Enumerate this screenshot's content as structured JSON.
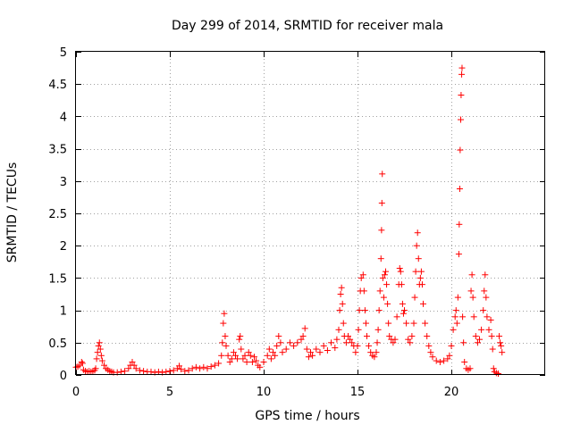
{
  "chart_data": {
    "type": "scatter",
    "title": "Day 299 of 2014, SRMTID for receiver mala",
    "xlabel": "GPS time / hours",
    "ylabel": "SRMTID / TECUs",
    "xlim": [
      0,
      25
    ],
    "ylim": [
      0,
      5
    ],
    "x_ticks": [
      0,
      5,
      10,
      15,
      20
    ],
    "y_ticks": [
      0,
      0.5,
      1,
      1.5,
      2,
      2.5,
      3,
      3.5,
      4,
      4.5,
      5
    ],
    "x_tick_labels": [
      "0",
      "5",
      "10",
      "15",
      "20"
    ],
    "y_tick_labels": [
      "0",
      "0.5",
      "1",
      "1.5",
      "2",
      "2.5",
      "3",
      "3.5",
      "4",
      "4.5",
      "5"
    ],
    "grid": true,
    "marker": "+",
    "color": "#ff0000",
    "series": [
      {
        "name": "SRMTID",
        "points": [
          [
            0.0,
            0.12
          ],
          [
            0.1,
            0.13
          ],
          [
            0.2,
            0.15
          ],
          [
            0.3,
            0.2
          ],
          [
            0.35,
            0.18
          ],
          [
            0.4,
            0.08
          ],
          [
            0.5,
            0.06
          ],
          [
            0.6,
            0.05
          ],
          [
            0.7,
            0.06
          ],
          [
            0.8,
            0.05
          ],
          [
            0.9,
            0.06
          ],
          [
            1.0,
            0.07
          ],
          [
            1.05,
            0.1
          ],
          [
            1.1,
            0.25
          ],
          [
            1.15,
            0.35
          ],
          [
            1.2,
            0.45
          ],
          [
            1.25,
            0.5
          ],
          [
            1.3,
            0.4
          ],
          [
            1.35,
            0.3
          ],
          [
            1.4,
            0.22
          ],
          [
            1.5,
            0.15
          ],
          [
            1.6,
            0.1
          ],
          [
            1.7,
            0.08
          ],
          [
            1.8,
            0.06
          ],
          [
            1.9,
            0.05
          ],
          [
            2.0,
            0.04
          ],
          [
            2.2,
            0.04
          ],
          [
            2.4,
            0.05
          ],
          [
            2.6,
            0.06
          ],
          [
            2.8,
            0.1
          ],
          [
            2.9,
            0.15
          ],
          [
            3.0,
            0.2
          ],
          [
            3.1,
            0.15
          ],
          [
            3.2,
            0.1
          ],
          [
            3.4,
            0.07
          ],
          [
            3.6,
            0.06
          ],
          [
            3.8,
            0.05
          ],
          [
            4.0,
            0.05
          ],
          [
            4.2,
            0.04
          ],
          [
            4.4,
            0.05
          ],
          [
            4.6,
            0.04
          ],
          [
            4.8,
            0.05
          ],
          [
            5.0,
            0.06
          ],
          [
            5.2,
            0.07
          ],
          [
            5.4,
            0.1
          ],
          [
            5.5,
            0.14
          ],
          [
            5.6,
            0.09
          ],
          [
            5.8,
            0.06
          ],
          [
            6.0,
            0.07
          ],
          [
            6.2,
            0.1
          ],
          [
            6.4,
            0.12
          ],
          [
            6.6,
            0.1
          ],
          [
            6.8,
            0.12
          ],
          [
            7.0,
            0.1
          ],
          [
            7.2,
            0.13
          ],
          [
            7.4,
            0.15
          ],
          [
            7.6,
            0.18
          ],
          [
            7.75,
            0.3
          ],
          [
            7.8,
            0.5
          ],
          [
            7.85,
            0.8
          ],
          [
            7.9,
            0.95
          ],
          [
            7.95,
            0.6
          ],
          [
            8.0,
            0.45
          ],
          [
            8.1,
            0.3
          ],
          [
            8.2,
            0.2
          ],
          [
            8.3,
            0.25
          ],
          [
            8.4,
            0.35
          ],
          [
            8.5,
            0.3
          ],
          [
            8.6,
            0.25
          ],
          [
            8.7,
            0.55
          ],
          [
            8.75,
            0.6
          ],
          [
            8.8,
            0.4
          ],
          [
            8.9,
            0.25
          ],
          [
            9.0,
            0.3
          ],
          [
            9.1,
            0.2
          ],
          [
            9.2,
            0.35
          ],
          [
            9.3,
            0.3
          ],
          [
            9.4,
            0.2
          ],
          [
            9.5,
            0.28
          ],
          [
            9.6,
            0.22
          ],
          [
            9.7,
            0.15
          ],
          [
            9.8,
            0.12
          ],
          [
            10.0,
            0.2
          ],
          [
            10.2,
            0.3
          ],
          [
            10.3,
            0.4
          ],
          [
            10.4,
            0.25
          ],
          [
            10.5,
            0.35
          ],
          [
            10.6,
            0.3
          ],
          [
            10.7,
            0.45
          ],
          [
            10.8,
            0.6
          ],
          [
            10.9,
            0.5
          ],
          [
            11.0,
            0.35
          ],
          [
            11.2,
            0.4
          ],
          [
            11.4,
            0.5
          ],
          [
            11.6,
            0.45
          ],
          [
            11.8,
            0.5
          ],
          [
            12.0,
            0.55
          ],
          [
            12.1,
            0.6
          ],
          [
            12.2,
            0.72
          ],
          [
            12.3,
            0.4
          ],
          [
            12.4,
            0.28
          ],
          [
            12.5,
            0.35
          ],
          [
            12.6,
            0.3
          ],
          [
            12.8,
            0.4
          ],
          [
            13.0,
            0.35
          ],
          [
            13.2,
            0.45
          ],
          [
            13.4,
            0.38
          ],
          [
            13.6,
            0.5
          ],
          [
            13.8,
            0.42
          ],
          [
            13.9,
            0.55
          ],
          [
            14.0,
            0.7
          ],
          [
            14.05,
            1.0
          ],
          [
            14.1,
            1.25
          ],
          [
            14.15,
            1.35
          ],
          [
            14.2,
            1.1
          ],
          [
            14.25,
            0.8
          ],
          [
            14.3,
            0.6
          ],
          [
            14.4,
            0.5
          ],
          [
            14.5,
            0.6
          ],
          [
            14.6,
            0.55
          ],
          [
            14.7,
            0.5
          ],
          [
            14.8,
            0.45
          ],
          [
            14.9,
            0.35
          ],
          [
            15.0,
            0.45
          ],
          [
            15.05,
            0.7
          ],
          [
            15.1,
            1.0
          ],
          [
            15.15,
            1.3
          ],
          [
            15.2,
            1.5
          ],
          [
            15.3,
            1.55
          ],
          [
            15.35,
            1.3
          ],
          [
            15.4,
            1.0
          ],
          [
            15.45,
            0.8
          ],
          [
            15.5,
            0.6
          ],
          [
            15.6,
            0.45
          ],
          [
            15.7,
            0.35
          ],
          [
            15.8,
            0.3
          ],
          [
            15.9,
            0.28
          ],
          [
            16.0,
            0.35
          ],
          [
            16.05,
            0.5
          ],
          [
            16.1,
            0.7
          ],
          [
            16.15,
            1.0
          ],
          [
            16.2,
            1.3
          ],
          [
            16.25,
            1.8
          ],
          [
            16.28,
            2.24
          ],
          [
            16.3,
            2.66
          ],
          [
            16.32,
            3.11
          ],
          [
            16.35,
            1.5
          ],
          [
            16.4,
            1.2
          ],
          [
            16.45,
            1.55
          ],
          [
            16.5,
            1.6
          ],
          [
            16.55,
            1.4
          ],
          [
            16.6,
            1.1
          ],
          [
            16.65,
            0.8
          ],
          [
            16.7,
            0.6
          ],
          [
            16.8,
            0.55
          ],
          [
            16.9,
            0.5
          ],
          [
            17.0,
            0.55
          ],
          [
            17.1,
            0.9
          ],
          [
            17.2,
            1.4
          ],
          [
            17.25,
            1.65
          ],
          [
            17.3,
            1.6
          ],
          [
            17.35,
            1.4
          ],
          [
            17.4,
            1.1
          ],
          [
            17.45,
            0.95
          ],
          [
            17.5,
            1.0
          ],
          [
            17.6,
            0.8
          ],
          [
            17.7,
            0.55
          ],
          [
            17.8,
            0.5
          ],
          [
            17.9,
            0.6
          ],
          [
            18.0,
            0.8
          ],
          [
            18.05,
            1.2
          ],
          [
            18.1,
            1.6
          ],
          [
            18.15,
            2.0
          ],
          [
            18.2,
            2.2
          ],
          [
            18.25,
            1.8
          ],
          [
            18.3,
            1.4
          ],
          [
            18.35,
            1.5
          ],
          [
            18.4,
            1.6
          ],
          [
            18.45,
            1.4
          ],
          [
            18.5,
            1.1
          ],
          [
            18.6,
            0.8
          ],
          [
            18.7,
            0.6
          ],
          [
            18.8,
            0.45
          ],
          [
            18.9,
            0.35
          ],
          [
            19.0,
            0.28
          ],
          [
            19.2,
            0.22
          ],
          [
            19.4,
            0.2
          ],
          [
            19.6,
            0.22
          ],
          [
            19.8,
            0.25
          ],
          [
            19.9,
            0.3
          ],
          [
            20.0,
            0.45
          ],
          [
            20.1,
            0.7
          ],
          [
            20.2,
            0.9
          ],
          [
            20.25,
            1.0
          ],
          [
            20.3,
            0.8
          ],
          [
            20.35,
            1.2
          ],
          [
            20.4,
            1.87
          ],
          [
            20.42,
            2.33
          ],
          [
            20.45,
            2.88
          ],
          [
            20.47,
            3.48
          ],
          [
            20.5,
            3.95
          ],
          [
            20.52,
            4.33
          ],
          [
            20.55,
            4.65
          ],
          [
            20.57,
            4.75
          ],
          [
            20.6,
            0.9
          ],
          [
            20.65,
            0.5
          ],
          [
            20.7,
            0.2
          ],
          [
            20.8,
            0.1
          ],
          [
            20.9,
            0.08
          ],
          [
            21.0,
            0.1
          ],
          [
            21.05,
            1.3
          ],
          [
            21.1,
            1.55
          ],
          [
            21.15,
            1.2
          ],
          [
            21.2,
            0.9
          ],
          [
            21.3,
            0.6
          ],
          [
            21.4,
            0.5
          ],
          [
            21.5,
            0.55
          ],
          [
            21.6,
            0.7
          ],
          [
            21.7,
            1.0
          ],
          [
            21.75,
            1.3
          ],
          [
            21.8,
            1.55
          ],
          [
            21.85,
            1.2
          ],
          [
            21.9,
            0.9
          ],
          [
            22.0,
            0.7
          ],
          [
            22.1,
            0.85
          ],
          [
            22.15,
            0.6
          ],
          [
            22.2,
            0.4
          ],
          [
            22.25,
            0.1
          ],
          [
            22.3,
            0.05
          ],
          [
            22.4,
            0.03
          ],
          [
            22.5,
            0.02
          ],
          [
            22.55,
            0.6
          ],
          [
            22.6,
            0.5
          ],
          [
            22.65,
            0.45
          ],
          [
            22.7,
            0.35
          ]
        ]
      }
    ]
  }
}
